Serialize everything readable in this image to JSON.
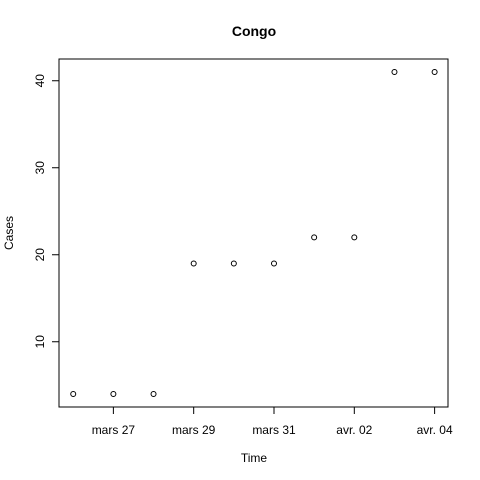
{
  "chart_data": {
    "type": "scatter",
    "title": "Congo",
    "xlabel": "Time",
    "ylabel": "Cases",
    "x_tick_labels": [
      "mars 27",
      "mars 29",
      "mars 31",
      "avr. 02",
      "avr. 04"
    ],
    "x_tick_dates": [
      "2020-03-27",
      "2020-03-29",
      "2020-03-31",
      "2020-04-02",
      "2020-04-04"
    ],
    "y_ticks": [
      10,
      20,
      30,
      40
    ],
    "xlim": [
      "2020-03-25T15:30",
      "2020-04-04T08:00"
    ],
    "ylim": [
      2.5,
      42.5
    ],
    "grid": false,
    "points": [
      {
        "x": "2020-03-26",
        "y": 4
      },
      {
        "x": "2020-03-27",
        "y": 4
      },
      {
        "x": "2020-03-28",
        "y": 4
      },
      {
        "x": "2020-03-29",
        "y": 19
      },
      {
        "x": "2020-03-30",
        "y": 19
      },
      {
        "x": "2020-03-31",
        "y": 19
      },
      {
        "x": "2020-04-01",
        "y": 22
      },
      {
        "x": "2020-04-02",
        "y": 22
      },
      {
        "x": "2020-04-03",
        "y": 41
      },
      {
        "x": "2020-04-04",
        "y": 41
      }
    ],
    "marker": "open-circle",
    "color": "#000000"
  }
}
